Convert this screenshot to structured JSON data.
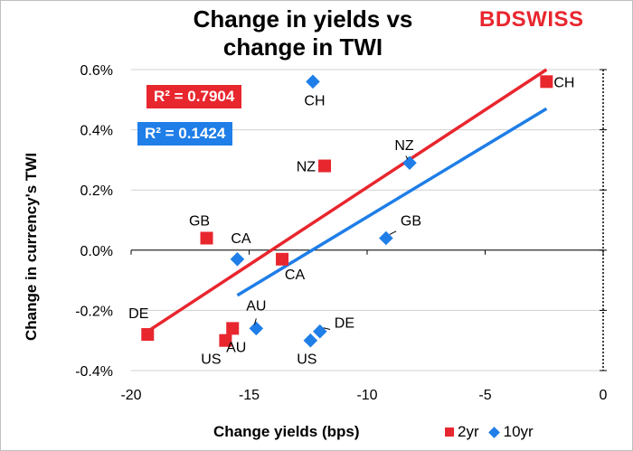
{
  "title": "Change in yields vs change in TWI",
  "logo": {
    "part1": "BD",
    "part2": "SWISS"
  },
  "annotations": {
    "r2_2yr": "R² = 0.7904",
    "r2_10yr": "R² = 0.1424"
  },
  "colors": {
    "series_2yr": "#e8262e",
    "series_10yr": "#1f7ee8",
    "grid": "#d0d0d0"
  },
  "chart_data": {
    "type": "scatter",
    "title": "Change in yields vs change in TWI",
    "xlabel": "Change yields  (bps)",
    "ylabel": "Change in currency's  TWI",
    "xlim": [
      -20,
      0
    ],
    "ylim": [
      -0.4,
      0.6
    ],
    "x_ticks": [
      -20,
      -15,
      -10,
      -5,
      0
    ],
    "x_tick_labels": [
      "-20",
      "-15",
      "-10",
      "-5",
      "0"
    ],
    "y_ticks": [
      -0.4,
      -0.2,
      0.0,
      0.2,
      0.4,
      0.6
    ],
    "y_tick_labels": [
      "-0.4%",
      "-0.2%",
      "0.0%",
      "0.2%",
      "0.4%",
      "0.6%"
    ],
    "legend": [
      "2yr",
      "10yr"
    ],
    "legend_position": "bottom-right",
    "series": [
      {
        "name": "2yr",
        "marker": "square",
        "points": [
          {
            "label": "CH",
            "x": -2.4,
            "y": 0.56
          },
          {
            "label": "NZ",
            "x": -11.8,
            "y": 0.28
          },
          {
            "label": "GB",
            "x": -16.8,
            "y": 0.04
          },
          {
            "label": "CA",
            "x": -13.6,
            "y": -0.03
          },
          {
            "label": "DE",
            "x": -19.3,
            "y": -0.28
          },
          {
            "label": "AU",
            "x": -15.7,
            "y": -0.26
          },
          {
            "label": "US",
            "x": -16.0,
            "y": -0.3
          }
        ],
        "trendline": {
          "x": [
            -19.3,
            -2.4
          ],
          "y": [
            -0.27,
            0.6
          ],
          "r2": 0.7904
        }
      },
      {
        "name": "10yr",
        "marker": "diamond",
        "points": [
          {
            "label": "CH",
            "x": -12.3,
            "y": 0.56
          },
          {
            "label": "NZ",
            "x": -8.2,
            "y": 0.29
          },
          {
            "label": "GB",
            "x": -9.2,
            "y": 0.04
          },
          {
            "label": "CA",
            "x": -15.5,
            "y": -0.03
          },
          {
            "label": "AU",
            "x": -14.7,
            "y": -0.26
          },
          {
            "label": "DE",
            "x": -12.0,
            "y": -0.27
          },
          {
            "label": "US",
            "x": -12.4,
            "y": -0.3
          }
        ],
        "trendline": {
          "x": [
            -15.5,
            -2.4
          ],
          "y": [
            -0.15,
            0.47
          ],
          "r2": 0.1424
        }
      }
    ]
  }
}
